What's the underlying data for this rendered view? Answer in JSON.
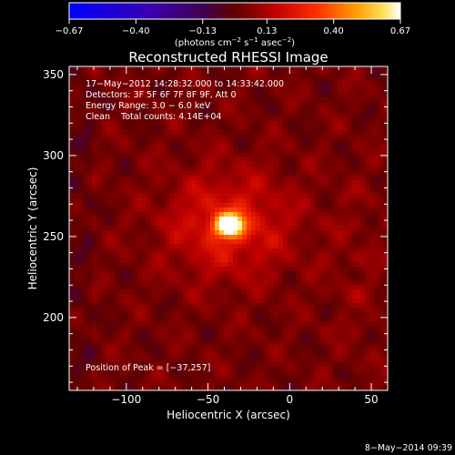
{
  "chart_data": {
    "type": "heatmap",
    "title": "Reconstructed RHESSI Image",
    "xlabel": "Heliocentric X (arcsec)",
    "ylabel": "Heliocentric Y (arcsec)",
    "xlim": [
      -135,
      60
    ],
    "ylim": [
      155,
      355
    ],
    "x_ticks": [
      -100,
      -50,
      0,
      50
    ],
    "x_tick_labels": [
      "−100",
      "−50",
      "0",
      "50"
    ],
    "y_ticks": [
      200,
      250,
      300,
      350
    ],
    "y_tick_labels": [
      "200",
      "250",
      "300",
      "350"
    ],
    "colorbar": {
      "min": -0.67,
      "max": 0.67,
      "ticks": [
        -0.67,
        -0.4,
        -0.13,
        0.13,
        0.4,
        0.67
      ],
      "tick_labels": [
        "−0.67",
        "−0.40",
        "−0.13",
        "0.13",
        "0.40",
        "0.67"
      ],
      "unit_main": "(photons cm",
      "unit_exp1": "−2",
      "unit_mid": " s",
      "unit_exp2": "−1",
      "unit_end": " asec",
      "unit_exp3": "−2",
      "unit_close": ")"
    },
    "annotations": [
      "17−May−2012 14:28:32.000 to 14:33:42.000",
      "Detectors: 3F 5F 6F 7F 8F 9F, Att 0",
      "Energy Range: 3.0 − 6.0 keV",
      "Clean    Total counts: 4.14E+04"
    ],
    "peak_label": "Position of Peak = [−37,257]",
    "peak": {
      "x": -37,
      "y": 257,
      "value": 0.67
    },
    "timestamp": "8−May−2014 09:39",
    "grid": false
  }
}
